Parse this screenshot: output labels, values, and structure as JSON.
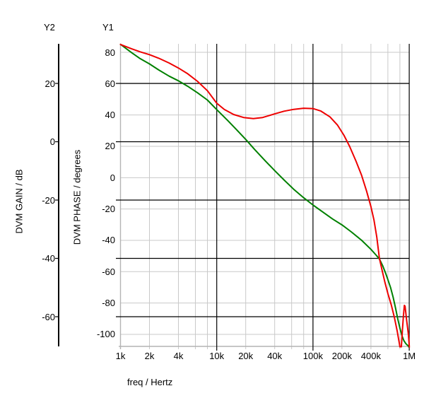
{
  "axes": {
    "y2": {
      "name": "Y2",
      "label": "DVM GAIN / dB",
      "unit": "dB",
      "ticks": [
        20,
        0,
        -20,
        -40,
        -60
      ]
    },
    "y1": {
      "name": "Y1",
      "label": "DVM PHASE / degrees",
      "unit": "degrees",
      "ticks": [
        80,
        60,
        40,
        20,
        0,
        -20,
        -40,
        -60,
        -80,
        -100
      ]
    },
    "x": {
      "label": "freq / Hertz",
      "scale": "log",
      "min_hz": 1000,
      "max_hz": 1000000,
      "tick_labels": [
        [
          "1k",
          1000
        ],
        [
          "2k",
          2000
        ],
        [
          "4k",
          4000
        ],
        [
          "10k",
          10000
        ],
        [
          "20k",
          20000
        ],
        [
          "40k",
          40000
        ],
        [
          "100k",
          100000
        ],
        [
          "200k",
          200000
        ],
        [
          "400k",
          400000
        ],
        [
          "1M",
          1000000
        ]
      ],
      "major_hz": [
        10000,
        100000,
        1000000
      ],
      "minor_hz": [
        2000,
        4000,
        6000,
        8000,
        20000,
        40000,
        60000,
        80000,
        200000,
        400000,
        600000,
        800000
      ]
    }
  },
  "colors": {
    "grid_minor": "#c9c9c9",
    "grid_major": "#000000",
    "frame": "#b3b3b3",
    "gain": "#008000",
    "phase": "#ee0000",
    "text": "#000000"
  },
  "chart_data": {
    "type": "line",
    "title": "",
    "x_scale": "log",
    "xlabel": "freq / Hertz",
    "x_range_hz": [
      1000,
      1000000
    ],
    "y1_label": "DVM PHASE / degrees",
    "y2_label": "DVM GAIN / dB",
    "legend": "none",
    "series": [
      {
        "name": "DVM GAIN",
        "axis": "y2",
        "unit": "dB",
        "color_key": "gain",
        "points": [
          [
            1000,
            33.4
          ],
          [
            1300,
            30.6
          ],
          [
            1600,
            28.5
          ],
          [
            2000,
            26.7
          ],
          [
            2500,
            24.6
          ],
          [
            3200,
            22.5
          ],
          [
            4000,
            20.9
          ],
          [
            5000,
            19.0
          ],
          [
            6300,
            16.8
          ],
          [
            8000,
            14.3
          ],
          [
            10000,
            11.0
          ],
          [
            13000,
            7.3
          ],
          [
            16000,
            4.2
          ],
          [
            20000,
            0.8
          ],
          [
            25000,
            -2.8
          ],
          [
            32000,
            -6.6
          ],
          [
            40000,
            -9.9
          ],
          [
            50000,
            -13.1
          ],
          [
            63000,
            -16.3
          ],
          [
            80000,
            -19.2
          ],
          [
            100000,
            -21.7
          ],
          [
            130000,
            -24.4
          ],
          [
            160000,
            -26.5
          ],
          [
            200000,
            -28.5
          ],
          [
            250000,
            -30.9
          ],
          [
            320000,
            -33.8
          ],
          [
            400000,
            -36.9
          ],
          [
            450000,
            -38.8
          ],
          [
            490000,
            -40.2
          ],
          [
            530000,
            -42.5
          ],
          [
            570000,
            -45.2
          ],
          [
            600000,
            -47.3
          ],
          [
            640000,
            -50.0
          ],
          [
            680000,
            -53.3
          ],
          [
            720000,
            -57.0
          ],
          [
            760000,
            -60.8
          ],
          [
            800000,
            -63.9
          ],
          [
            840000,
            -66.5
          ],
          [
            880000,
            -68.2
          ],
          [
            920000,
            -69.2
          ],
          [
            960000,
            -69.8
          ],
          [
            985000,
            -70.0
          ],
          [
            1000000,
            -74.0
          ],
          [
            1005000,
            -82.0
          ]
        ]
      },
      {
        "name": "DVM PHASE",
        "axis": "y1",
        "unit": "degrees",
        "color_key": "phase",
        "points": [
          [
            1000,
            85.0
          ],
          [
            1300,
            82.3
          ],
          [
            1600,
            80.3
          ],
          [
            2000,
            78.5
          ],
          [
            2500,
            76.2
          ],
          [
            3200,
            73.2
          ],
          [
            4000,
            70.0
          ],
          [
            5000,
            66.3
          ],
          [
            6300,
            61.5
          ],
          [
            8000,
            55.5
          ],
          [
            10000,
            47.5
          ],
          [
            12000,
            43.5
          ],
          [
            15000,
            40.3
          ],
          [
            19000,
            38.4
          ],
          [
            24000,
            37.7
          ],
          [
            30000,
            38.4
          ],
          [
            40000,
            40.7
          ],
          [
            50000,
            42.4
          ],
          [
            63000,
            43.6
          ],
          [
            80000,
            44.3
          ],
          [
            100000,
            44.1
          ],
          [
            120000,
            42.6
          ],
          [
            150000,
            38.8
          ],
          [
            180000,
            33.5
          ],
          [
            210000,
            27.0
          ],
          [
            240000,
            20.0
          ],
          [
            280000,
            10.5
          ],
          [
            320000,
            1.5
          ],
          [
            360000,
            -8.5
          ],
          [
            400000,
            -18.5
          ],
          [
            430000,
            -27.0
          ],
          [
            460000,
            -38.0
          ],
          [
            490000,
            -51.5
          ],
          [
            520000,
            -58.5
          ],
          [
            560000,
            -67.0
          ],
          [
            600000,
            -74.0
          ],
          [
            650000,
            -81.0
          ],
          [
            700000,
            -89.0
          ],
          [
            750000,
            -98.0
          ],
          [
            790000,
            -106.0
          ],
          [
            815000,
            -111.0
          ],
          [
            830000,
            -107.0
          ],
          [
            850000,
            -97.0
          ],
          [
            870000,
            -88.0
          ],
          [
            890000,
            -81.5
          ],
          [
            905000,
            -82.0
          ],
          [
            920000,
            -86.0
          ],
          [
            940000,
            -91.0
          ],
          [
            960000,
            -95.5
          ],
          [
            980000,
            -100.0
          ],
          [
            1000000,
            -107.0
          ],
          [
            1010000,
            -113.0
          ]
        ]
      }
    ]
  }
}
